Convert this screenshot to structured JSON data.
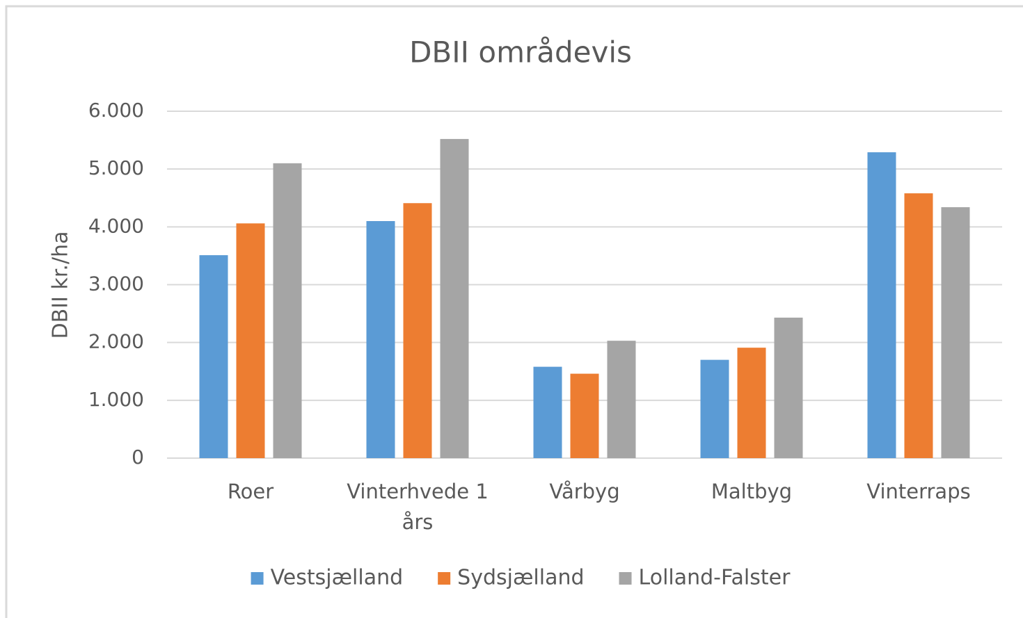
{
  "chart_data": {
    "type": "bar",
    "title": "DBII områdevis",
    "y_label": "DBII kr./ha",
    "categories": [
      "Roer",
      "Vinterhvede 1 års",
      "Vårbyg",
      "Maltbyg",
      "Vinterraps"
    ],
    "series": [
      {
        "name": "Vestsjælland",
        "color": "#5b9bd5",
        "values": [
          3510,
          4100,
          1580,
          1700,
          5290
        ]
      },
      {
        "name": "Sydsjælland",
        "color": "#ed7d31",
        "values": [
          4060,
          4410,
          1460,
          1910,
          4580
        ]
      },
      {
        "name": "Lolland-Falster",
        "color": "#a5a5a5",
        "values": [
          5100,
          5520,
          2030,
          2430,
          4340
        ]
      }
    ],
    "ylim": [
      0,
      6000
    ],
    "yticks": [
      0,
      {
        "value": 1000,
        "label": "1.000"
      },
      {
        "value": 2000,
        "label": "2.000"
      },
      {
        "value": 3000,
        "label": "3.000"
      },
      {
        "value": 4000,
        "label": "4.000"
      },
      {
        "value": 5000,
        "label": "5.000"
      },
      {
        "value": 6000,
        "label": "6.000"
      }
    ],
    "grid": true,
    "legend": "bottom"
  }
}
